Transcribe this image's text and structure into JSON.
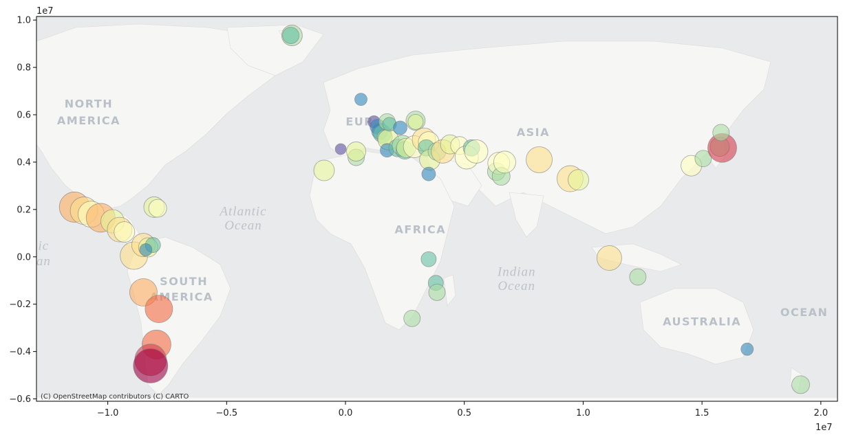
{
  "chart_data": {
    "type": "scatter",
    "title": "",
    "xlabel": "",
    "ylabel": "",
    "xlim": [
      -13000000,
      20700000
    ],
    "ylim": [
      -6100000,
      10150000
    ],
    "x_offset_label": "1e7",
    "y_offset_label": "1e7",
    "x_ticks": [
      -10000000,
      -5000000,
      0,
      5000000,
      10000000,
      15000000,
      20000000
    ],
    "x_tick_labels": [
      "−1.0",
      "−0.5",
      "0.0",
      "0.5",
      "1.0",
      "1.5",
      "2.0"
    ],
    "y_ticks": [
      -6000000,
      -4000000,
      -2000000,
      0,
      2000000,
      4000000,
      6000000,
      8000000,
      10000000
    ],
    "y_tick_labels": [
      "−0.6",
      "−0.4",
      "−0.2",
      "0.0",
      "0.2",
      "0.4",
      "0.6",
      "0.8",
      "1.0"
    ],
    "grid": false,
    "basemap": "CARTO light (Web Mercator)",
    "colormap": "Spectral_r",
    "marker_alpha": 0.6,
    "marker_edge_color": "#7f7f7f",
    "points": [
      {
        "x": -11400000,
        "y": 2100000,
        "size": 44,
        "color": "#fdae61"
      },
      {
        "x": -11000000,
        "y": 1950000,
        "size": 40,
        "color": "#fee08b"
      },
      {
        "x": -10700000,
        "y": 1800000,
        "size": 38,
        "color": "#ffffbf"
      },
      {
        "x": -10300000,
        "y": 1650000,
        "size": 42,
        "color": "#fdae61"
      },
      {
        "x": -9800000,
        "y": 1500000,
        "size": 34,
        "color": "#e6f598"
      },
      {
        "x": -9500000,
        "y": 1150000,
        "size": 36,
        "color": "#fee08b"
      },
      {
        "x": -9300000,
        "y": 1050000,
        "size": 30,
        "color": "#ffffbf"
      },
      {
        "x": -8900000,
        "y": 50000,
        "size": 40,
        "color": "#fee08b"
      },
      {
        "x": -8500000,
        "y": 500000,
        "size": 34,
        "color": "#fee08b"
      },
      {
        "x": -8300000,
        "y": 400000,
        "size": 28,
        "color": "#e6f598"
      },
      {
        "x": -8100000,
        "y": 500000,
        "size": 22,
        "color": "#66c2a5"
      },
      {
        "x": -8400000,
        "y": 300000,
        "size": 18,
        "color": "#3288bd"
      },
      {
        "x": -8050000,
        "y": 2100000,
        "size": 30,
        "color": "#e6f598"
      },
      {
        "x": -7900000,
        "y": 2050000,
        "size": 26,
        "color": "#ffffbf"
      },
      {
        "x": -8500000,
        "y": -1500000,
        "size": 40,
        "color": "#fdae61"
      },
      {
        "x": -7850000,
        "y": -2200000,
        "size": 40,
        "color": "#f46d43"
      },
      {
        "x": -7950000,
        "y": -3700000,
        "size": 42,
        "color": "#f46d43"
      },
      {
        "x": -8200000,
        "y": -4350000,
        "size": 46,
        "color": "#d53e4f"
      },
      {
        "x": -8200000,
        "y": -4600000,
        "size": 50,
        "color": "#9e0142"
      },
      {
        "x": -2250000,
        "y": 9350000,
        "size": 30,
        "color": "#abdda4"
      },
      {
        "x": -2300000,
        "y": 9350000,
        "size": 24,
        "color": "#66c2a5"
      },
      {
        "x": 650000,
        "y": 6650000,
        "size": 18,
        "color": "#3288bd"
      },
      {
        "x": -900000,
        "y": 3650000,
        "size": 30,
        "color": "#e6f598"
      },
      {
        "x": -200000,
        "y": 4550000,
        "size": 16,
        "color": "#5e4fa2"
      },
      {
        "x": 450000,
        "y": 4200000,
        "size": 24,
        "color": "#abdda4"
      },
      {
        "x": 450000,
        "y": 4450000,
        "size": 28,
        "color": "#e6f598"
      },
      {
        "x": 1200000,
        "y": 5700000,
        "size": 18,
        "color": "#5e4fa2"
      },
      {
        "x": 1350000,
        "y": 5500000,
        "size": 22,
        "color": "#3288bd"
      },
      {
        "x": 1450000,
        "y": 5300000,
        "size": 24,
        "color": "#3288bd"
      },
      {
        "x": 1550000,
        "y": 5200000,
        "size": 26,
        "color": "#66c2a5"
      },
      {
        "x": 1650000,
        "y": 5050000,
        "size": 22,
        "color": "#abdda4"
      },
      {
        "x": 1800000,
        "y": 4950000,
        "size": 30,
        "color": "#e6f598"
      },
      {
        "x": 1750000,
        "y": 5700000,
        "size": 24,
        "color": "#abdda4"
      },
      {
        "x": 1850000,
        "y": 5600000,
        "size": 20,
        "color": "#66c2a5"
      },
      {
        "x": 1750000,
        "y": 4500000,
        "size": 20,
        "color": "#3288bd"
      },
      {
        "x": 2300000,
        "y": 5450000,
        "size": 20,
        "color": "#3288bd"
      },
      {
        "x": 2200000,
        "y": 4600000,
        "size": 26,
        "color": "#66c2a5"
      },
      {
        "x": 2400000,
        "y": 4700000,
        "size": 30,
        "color": "#abdda4"
      },
      {
        "x": 2500000,
        "y": 4500000,
        "size": 26,
        "color": "#66c2a5"
      },
      {
        "x": 2550000,
        "y": 4600000,
        "size": 28,
        "color": "#e6f598"
      },
      {
        "x": 2900000,
        "y": 4650000,
        "size": 32,
        "color": "#ffffbf"
      },
      {
        "x": 2950000,
        "y": 5750000,
        "size": 28,
        "color": "#abdda4"
      },
      {
        "x": 2950000,
        "y": 5700000,
        "size": 22,
        "color": "#e6f598"
      },
      {
        "x": 3300000,
        "y": 4950000,
        "size": 34,
        "color": "#fee08b"
      },
      {
        "x": 3500000,
        "y": 4850000,
        "size": 30,
        "color": "#ffffbf"
      },
      {
        "x": 3400000,
        "y": 4600000,
        "size": 24,
        "color": "#66c2a5"
      },
      {
        "x": 3550000,
        "y": 4100000,
        "size": 30,
        "color": "#e6f598"
      },
      {
        "x": 3500000,
        "y": 3500000,
        "size": 20,
        "color": "#3288bd"
      },
      {
        "x": 3850000,
        "y": 4450000,
        "size": 26,
        "color": "#abdda4"
      },
      {
        "x": 4100000,
        "y": 4450000,
        "size": 34,
        "color": "#fee08b"
      },
      {
        "x": 4400000,
        "y": 4750000,
        "size": 28,
        "color": "#e6f598"
      },
      {
        "x": 4800000,
        "y": 4700000,
        "size": 26,
        "color": "#ffffbf"
      },
      {
        "x": 5100000,
        "y": 4200000,
        "size": 34,
        "color": "#ffffbf"
      },
      {
        "x": 5300000,
        "y": 4600000,
        "size": 24,
        "color": "#66c2a5"
      },
      {
        "x": 5500000,
        "y": 4450000,
        "size": 34,
        "color": "#ffffbf"
      },
      {
        "x": 6350000,
        "y": 3600000,
        "size": 26,
        "color": "#abdda4"
      },
      {
        "x": 6450000,
        "y": 3950000,
        "size": 32,
        "color": "#ffffbf"
      },
      {
        "x": 6550000,
        "y": 3400000,
        "size": 26,
        "color": "#abdda4"
      },
      {
        "x": 6700000,
        "y": 4000000,
        "size": 32,
        "color": "#ffffbf"
      },
      {
        "x": 8150000,
        "y": 4100000,
        "size": 38,
        "color": "#fee08b"
      },
      {
        "x": 9450000,
        "y": 3300000,
        "size": 38,
        "color": "#fee08b"
      },
      {
        "x": 9800000,
        "y": 3250000,
        "size": 30,
        "color": "#e6f598"
      },
      {
        "x": 11100000,
        "y": -50000,
        "size": 36,
        "color": "#fee08b"
      },
      {
        "x": 12300000,
        "y": -850000,
        "size": 24,
        "color": "#abdda4"
      },
      {
        "x": 3500000,
        "y": -100000,
        "size": 22,
        "color": "#66c2a5"
      },
      {
        "x": 3800000,
        "y": -1100000,
        "size": 22,
        "color": "#66c2a5"
      },
      {
        "x": 3850000,
        "y": -1500000,
        "size": 24,
        "color": "#abdda4"
      },
      {
        "x": 2800000,
        "y": -2600000,
        "size": 24,
        "color": "#abdda4"
      },
      {
        "x": 14550000,
        "y": 3850000,
        "size": 30,
        "color": "#ffffbf"
      },
      {
        "x": 15050000,
        "y": 4150000,
        "size": 24,
        "color": "#abdda4"
      },
      {
        "x": 15750000,
        "y": 4650000,
        "size": 28,
        "color": "#abdda4"
      },
      {
        "x": 15850000,
        "y": 4600000,
        "size": 42,
        "color": "#d53e4f"
      },
      {
        "x": 15800000,
        "y": 5250000,
        "size": 24,
        "color": "#abdda4"
      },
      {
        "x": 16900000,
        "y": -3900000,
        "size": 18,
        "color": "#3288bd"
      },
      {
        "x": 19150000,
        "y": -5400000,
        "size": 26,
        "color": "#abdda4"
      }
    ],
    "basemap_labels": [
      {
        "text": "NORTH",
        "x": -10800000,
        "y": 6300000,
        "style": "continent"
      },
      {
        "text": "AMERICA",
        "x": -10800000,
        "y": 5600000,
        "style": "continent"
      },
      {
        "text": "SOUTH",
        "x": -6800000,
        "y": -1200000,
        "style": "continent"
      },
      {
        "text": "AMERICA",
        "x": -6900000,
        "y": -1850000,
        "style": "continent"
      },
      {
        "text": "EUR",
        "x": 600000,
        "y": 5550000,
        "style": "continent"
      },
      {
        "text": "ASIA",
        "x": 7900000,
        "y": 5100000,
        "style": "continent"
      },
      {
        "text": "AFRICA",
        "x": 3150000,
        "y": 1000000,
        "style": "continent"
      },
      {
        "text": "AUSTRALIA",
        "x": 15000000,
        "y": -2900000,
        "style": "continent"
      },
      {
        "text": "OCEAN",
        "x": 19300000,
        "y": -2500000,
        "style": "continent"
      },
      {
        "text": "Atlantic",
        "x": -4300000,
        "y": 1750000,
        "style": "ocean"
      },
      {
        "text": "Ocean",
        "x": -4300000,
        "y": 1150000,
        "style": "ocean"
      },
      {
        "text": "Indian",
        "x": 7200000,
        "y": -800000,
        "style": "ocean"
      },
      {
        "text": "Ocean",
        "x": 7200000,
        "y": -1400000,
        "style": "ocean"
      },
      {
        "text": "ic",
        "x": -12700000,
        "y": 300000,
        "style": "ocean"
      },
      {
        "text": "an",
        "x": -12700000,
        "y": -350000,
        "style": "ocean"
      }
    ],
    "attribution": "(C) OpenStreetMap contributors (C) CARTO"
  }
}
